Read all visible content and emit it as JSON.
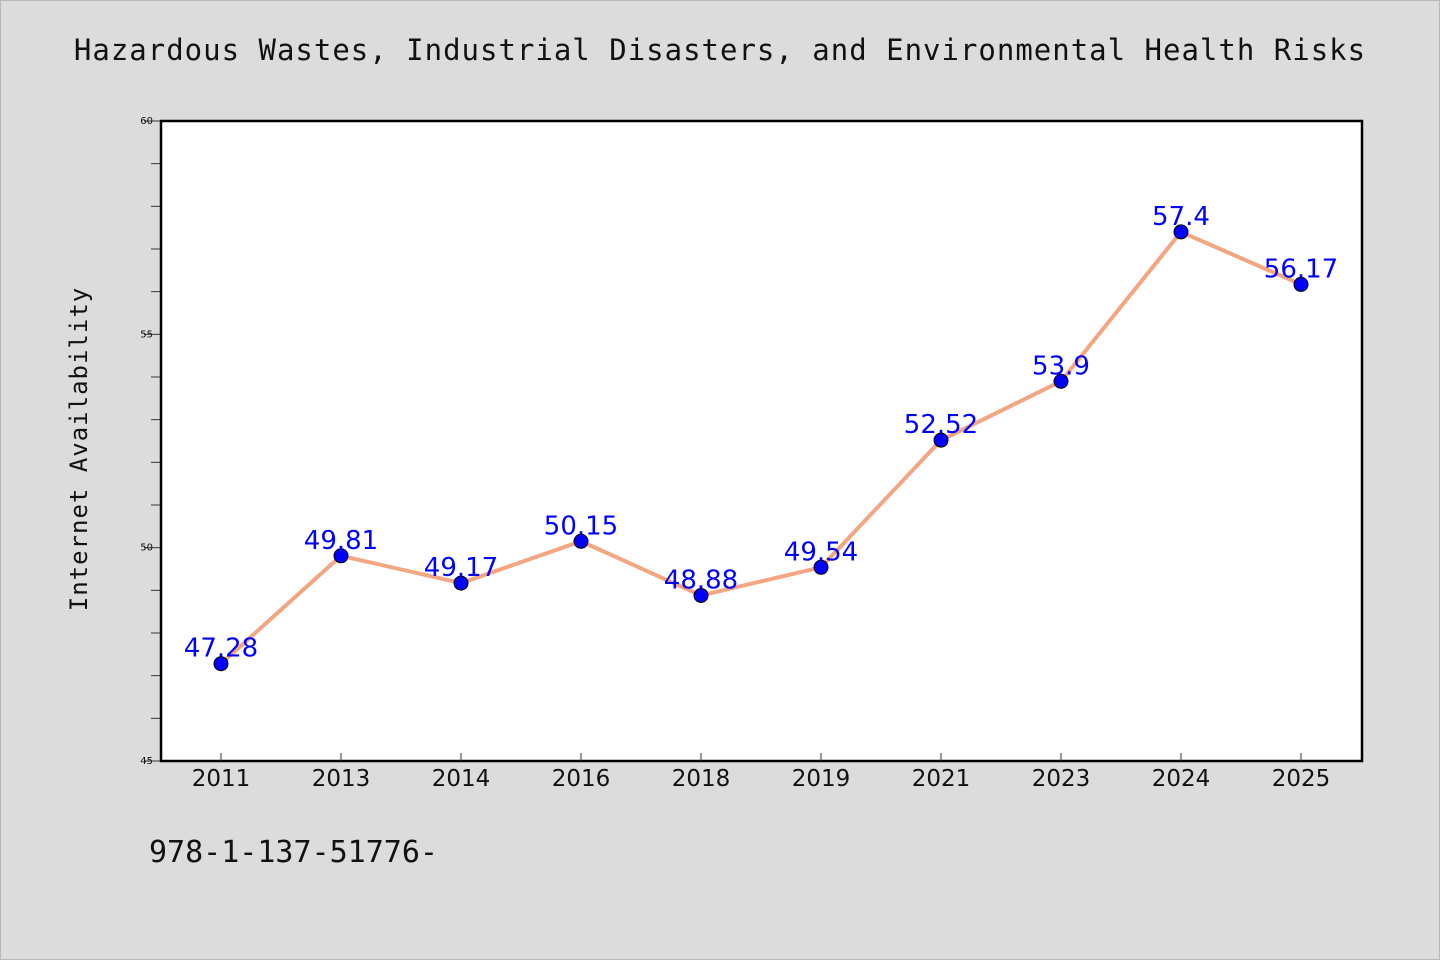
{
  "colors": {
    "background": "#dcdcdc",
    "plot_background": "#ffffff",
    "line": "#f4a582",
    "marker": "#0000ff",
    "data_label": "#0000ff"
  },
  "footer": {
    "code": "978-1-137-51776-"
  },
  "chart_data": {
    "type": "line",
    "title": "Hazardous Wastes, Industrial Disasters, and Environmental Health Risks",
    "xlabel": "",
    "ylabel": "Internet Availability",
    "categories": [
      "2011",
      "2013",
      "2014",
      "2016",
      "2018",
      "2019",
      "2021",
      "2023",
      "2024",
      "2025"
    ],
    "values": [
      47.28,
      49.81,
      49.17,
      50.15,
      48.88,
      49.54,
      52.52,
      53.9,
      57.4,
      56.17
    ],
    "data_labels": [
      "47.28",
      "49.81",
      "49.17",
      "50.15",
      "48.88",
      "49.54",
      "52.52",
      "53.9",
      "57.4",
      "56.17"
    ],
    "ylim": [
      45,
      60
    ],
    "yticks": [
      45,
      50,
      55,
      60
    ],
    "ytick_labels": [
      "45",
      "50",
      "55",
      "60"
    ],
    "y_minor_step": 1,
    "grid": false,
    "legend": "none"
  }
}
